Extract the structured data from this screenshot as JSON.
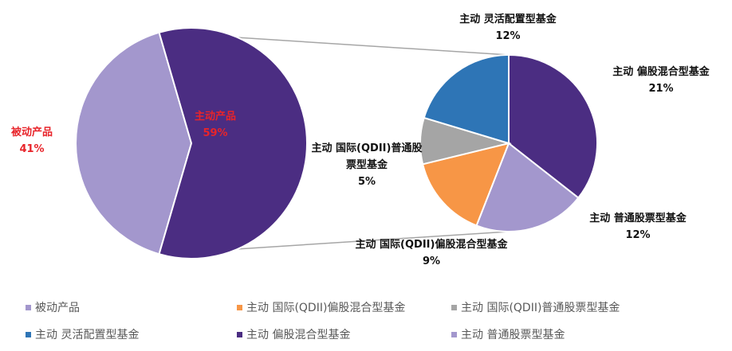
{
  "chart_data": {
    "type": "pie",
    "main_pie": {
      "slices": [
        {
          "label": "被动产品",
          "value_text": "41%",
          "value": 41,
          "color": "#a397cd",
          "label_color": "#e8242a"
        },
        {
          "label": "主动产品",
          "value_text": "59%",
          "value": 59,
          "color": "#4b2d82",
          "label_color": "#e8242a"
        }
      ]
    },
    "sub_pie": {
      "slices": [
        {
          "label": "主动 偏股混合型基金",
          "value_text": "21%",
          "value": 21,
          "color": "#4b2d82"
        },
        {
          "label": "主动 普通股票型基金",
          "value_text": "12%",
          "value": 12,
          "color": "#a397cd"
        },
        {
          "label": "主动 国际(QDII)偏股混合型基金",
          "value_text": "9%",
          "value": 9,
          "color": "#f79646"
        },
        {
          "label": "主动 国际(QDII)普通股票型基金",
          "value_text": "5%",
          "value": 5,
          "color": "#a5a5a5"
        },
        {
          "label": "主动 灵活配置型基金",
          "value_text": "12%",
          "value": 12,
          "color": "#2e75b6"
        }
      ]
    },
    "legend": [
      {
        "label": "被动产品",
        "color": "#a397cd"
      },
      {
        "label": "主动 国际(QDII)偏股混合型基金",
        "color": "#f79646"
      },
      {
        "label": "主动 国际(QDII)普通股票型基金",
        "color": "#a5a5a5"
      },
      {
        "label": "主动 灵活配置型基金",
        "color": "#2e75b6"
      },
      {
        "label": "主动 偏股混合型基金",
        "color": "#4b2d82"
      },
      {
        "label": "主动 普通股票型基金",
        "color": "#a397cd"
      }
    ]
  }
}
